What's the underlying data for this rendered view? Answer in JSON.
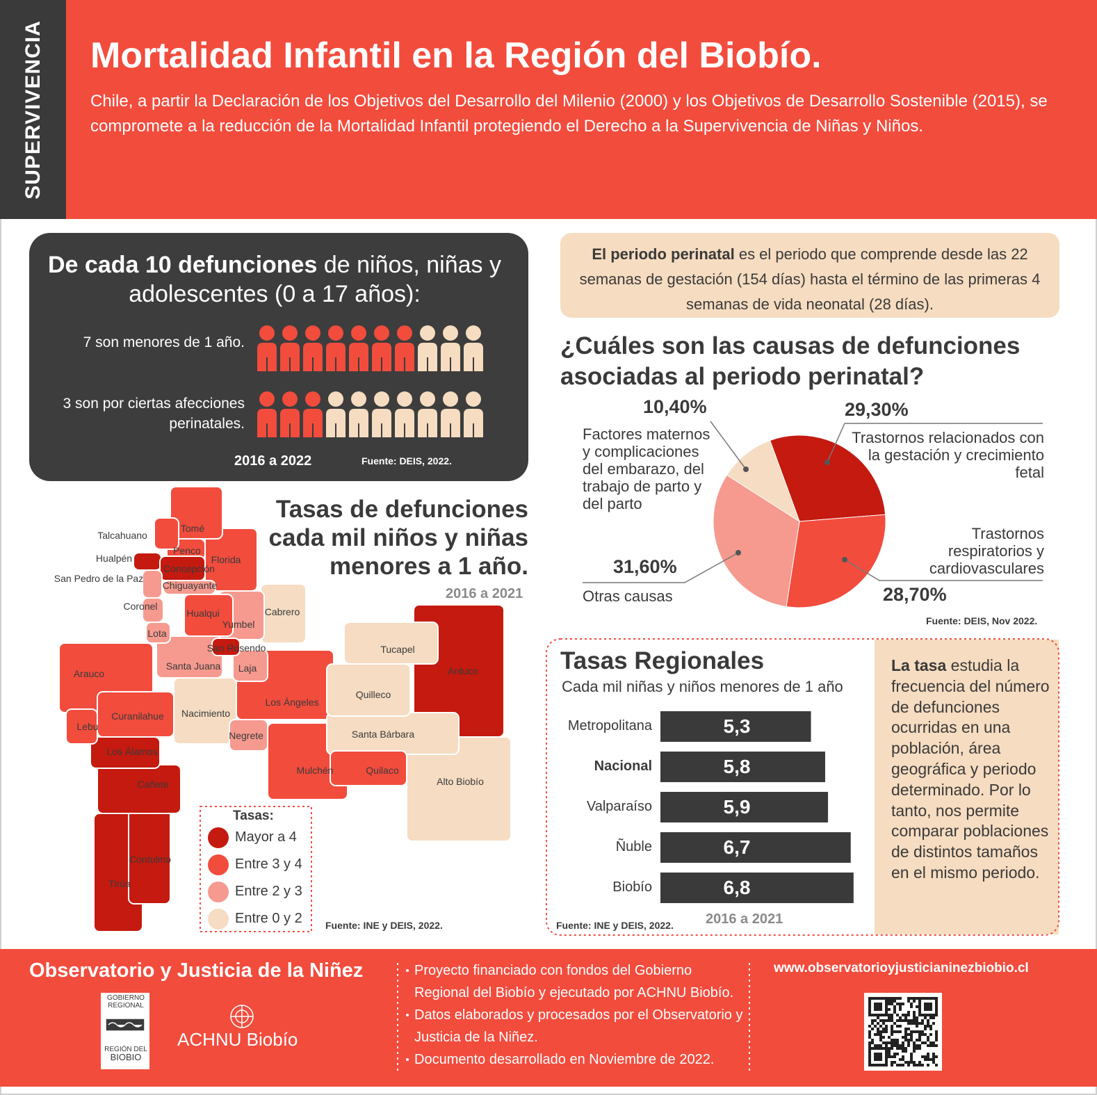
{
  "header": {
    "tag": "SUPERVIVENCIA",
    "title": "Mortalidad Infantil en la Región del Biobío.",
    "intro": "Chile, a partir la Declaración de los Objetivos del Desarrollo del Milenio (2000) y los Objetivos de Desarrollo Sostenible (2015), se compromete a la reducción de la Mortalidad Infantil protegiendo el Derecho a la Supervivencia de Niñas y Niños."
  },
  "deaths_box": {
    "heading_bold": "De cada 10 defunciones",
    "heading_rest": "de niños, niñas y adolescentes (0 a 17 años):",
    "period": "2016 a 2022",
    "source": "Fuente: DEIS, 2022."
  },
  "perinatal_box": {
    "bold": "El periodo perinatal",
    "rest": "es el periodo que comprende desde las 22 semanas de gestación (154 días) hasta el término de las primeras 4 semanas de vida neonatal (28 días)."
  },
  "map": {
    "title": "Tasas de defunciones cada mil niños y niñas menores a 1 año.",
    "period": "2016 a 2021",
    "source": "Fuente: INE y DEIS, 2022.",
    "legend_title": "Tasas:",
    "legend": [
      {
        "label": "Mayor a 4",
        "color": "#c41a0f"
      },
      {
        "label": "Entre 3 y 4",
        "color": "#f24c3d"
      },
      {
        "label": "Entre 2 y 3",
        "color": "#f69a8f"
      },
      {
        "label": "Entre 0 y 2",
        "color": "#f5dcc2"
      }
    ],
    "communes": [
      {
        "name": "Antuco",
        "color": "#c41a0f"
      },
      {
        "name": "Alto Biobío",
        "color": "#f5dcc2"
      },
      {
        "name": "Los Ángeles",
        "color": "#f24c3d"
      },
      {
        "name": "Mulchén",
        "color": "#f24c3d"
      },
      {
        "name": "Santa Bárbara",
        "color": "#f5dcc2"
      },
      {
        "name": "Tucapel",
        "color": "#f5dcc2"
      },
      {
        "name": "Quilleco",
        "color": "#f5dcc2"
      },
      {
        "name": "Arauco",
        "color": "#f24c3d"
      },
      {
        "name": "Tirúa",
        "color": "#c41a0f"
      },
      {
        "name": "Contulmo",
        "color": "#c41a0f"
      },
      {
        "name": "Cañete",
        "color": "#c41a0f"
      },
      {
        "name": "Los Álamos",
        "color": "#c41a0f"
      },
      {
        "name": "Curanilahue",
        "color": "#f24c3d"
      },
      {
        "name": "Lebu",
        "color": "#f24c3d"
      },
      {
        "name": "Nacimiento",
        "color": "#f5dcc2"
      },
      {
        "name": "Santa Juana",
        "color": "#f69a8f"
      },
      {
        "name": "Negrete",
        "color": "#f69a8f"
      },
      {
        "name": "Quilaco",
        "color": "#f24c3d"
      },
      {
        "name": "Laja",
        "color": "#f69a8f"
      },
      {
        "name": "Cabrero",
        "color": "#f5dcc2"
      },
      {
        "name": "Yumbel",
        "color": "#f69a8f"
      },
      {
        "name": "San Rosendo",
        "color": "#c41a0f"
      },
      {
        "name": "Hualqui",
        "color": "#f24c3d"
      },
      {
        "name": "Florida",
        "color": "#f24c3d"
      },
      {
        "name": "Tomé",
        "color": "#f24c3d"
      },
      {
        "name": "Penco",
        "color": "#f24c3d"
      },
      {
        "name": "Talcahuano",
        "color": "#f24c3d"
      },
      {
        "name": "Hualpén",
        "color": "#c41a0f"
      },
      {
        "name": "Concepción",
        "color": "#c41a0f"
      },
      {
        "name": "San Pedro de la Paz",
        "color": "#f69a8f"
      },
      {
        "name": "Chiguayante",
        "color": "#f69a8f"
      },
      {
        "name": "Coronel",
        "color": "#f69a8f"
      },
      {
        "name": "Lota",
        "color": "#f69a8f"
      }
    ]
  },
  "regional_box": {
    "note_bold": "La tasa",
    "note_rest": "estudia la frecuencia del número de defunciones ocurridas en una población, área geográfica y periodo determinado. Por lo tanto, nos permite comparar poblaciones de distintos tamaños en el mismo periodo."
  },
  "footer": {
    "org": "Observatorio y Justicia de la Niñez",
    "gov_logo": [
      "GOBIERNO",
      "REGIONAL",
      "REGIÓN DEL",
      "BIOBIO"
    ],
    "achnu": "ACHNU Biobío",
    "notes": [
      "Proyecto financiado con fondos del Gobierno Regional del Biobío y ejecutado por ACHNU Biobío.",
      "Datos elaborados y procesados por el Observatorio y Justicia de la Niñez.",
      "Documento desarrollado en Noviembre de 2022."
    ],
    "url": "www.observatorioyjusticianinezbiobio.cl"
  },
  "chart_data": [
    {
      "type": "icon-array",
      "total": 10,
      "categories": [
        "7 son menores de 1 año.",
        "3 son por ciertas afecciones perinatales."
      ],
      "values": [
        7,
        3
      ],
      "color": "#f24c3d",
      "rest_color": "#f6dcc0"
    },
    {
      "type": "pie",
      "title": "¿Cuáles son las  causas de defunciones asociadas al periodo perinatal?",
      "categories": [
        "Trastornos relacionados con la gestación y crecimiento fetal",
        "Trastornos respiratorios y cardiovasculares",
        "Otras causas",
        "Factores maternos y complicaciones del embarazo, del trabajo de parto y del parto"
      ],
      "values": [
        29.3,
        28.7,
        31.6,
        10.4
      ],
      "value_labels": [
        "29,30%",
        "28,70%",
        "31,60%",
        "10,40%"
      ],
      "colors": [
        "#c41a0f",
        "#f24c3d",
        "#f69a8f",
        "#f5dcc2"
      ],
      "source": "Fuente: DEIS, Nov 2022."
    },
    {
      "type": "bar",
      "orientation": "horizontal",
      "title": "Tasas Regionales",
      "subtitle": "Cada mil niñas y niños menores de 1 año",
      "categories": [
        "Metropolitana",
        "Nacional",
        "Valparaíso",
        "Ñuble",
        "Biobío"
      ],
      "bold_categories": [
        false,
        true,
        false,
        false,
        false
      ],
      "values": [
        5.3,
        5.8,
        5.9,
        6.7,
        6.8
      ],
      "value_labels": [
        "5,3",
        "5,8",
        "5,9",
        "6,7",
        "6,8"
      ],
      "color": "#3a3a3a",
      "xlim": [
        0,
        7
      ],
      "period": "2016 a 2021",
      "source": "Fuente: INE y DEIS, 2022."
    }
  ]
}
